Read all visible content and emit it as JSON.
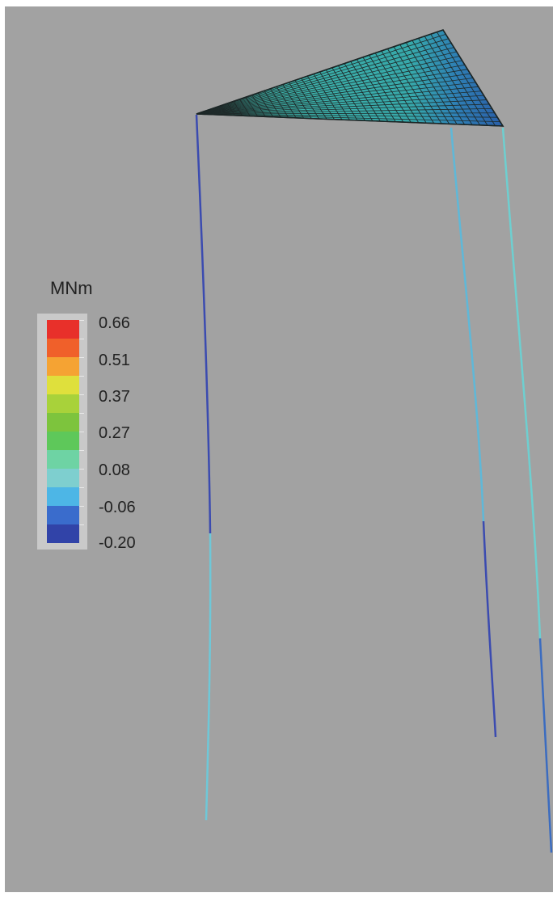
{
  "legend": {
    "unit": "MNm",
    "colors": [
      "#e8302a",
      "#f0602a",
      "#f5a333",
      "#dfe03c",
      "#a8d23a",
      "#7dc43d",
      "#5ec85a",
      "#6ed3a4",
      "#7ecfcf",
      "#4db6e6",
      "#3a6ccc",
      "#3143a8"
    ],
    "labels": [
      "0.66",
      "0.51",
      "0.37",
      "0.27",
      "0.08",
      "-0.06",
      "-0.20"
    ]
  },
  "structure": {
    "description_colors": {
      "shell_base": "#3fb3a6",
      "shell_dark": "#2a5ea8",
      "mesh_line": "#1f2a2a",
      "column_dark": "#3b4bb0",
      "column_light": "#5fb8d8",
      "column_cyan": "#6ecfd0"
    }
  }
}
